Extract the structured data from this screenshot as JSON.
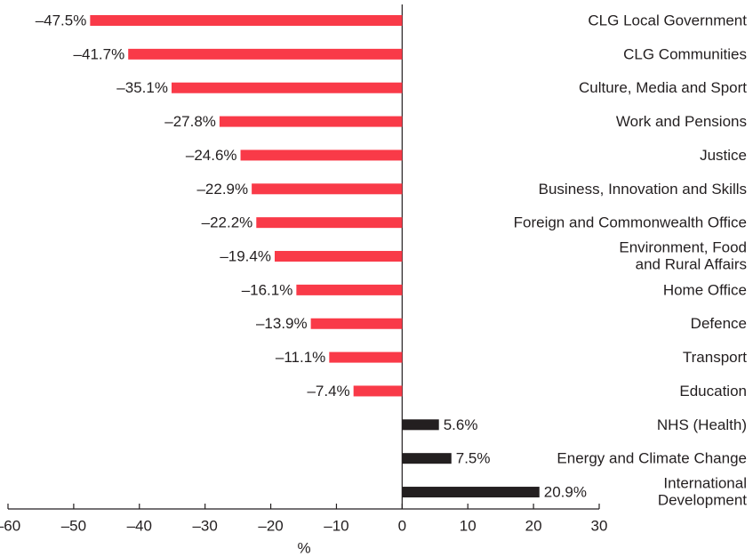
{
  "chart_data": {
    "type": "bar",
    "orientation": "horizontal",
    "categories": [
      "CLG Local Government",
      "CLG  Communities",
      "Culture, Media and Sport",
      "Work and Pensions",
      "Justice",
      "Business, Innovation and Skills",
      "Foreign and Commonwealth Office",
      "Environment, Food\nand Rural Affairs",
      "Home Office",
      "Defence",
      "Transport",
      "Education",
      "NHS (Health)",
      "Energy and Climate Change",
      "International\nDevelopment"
    ],
    "values": [
      -47.5,
      -41.7,
      -35.1,
      -27.8,
      -24.6,
      -22.9,
      -22.2,
      -19.4,
      -16.1,
      -13.9,
      -11.1,
      -7.4,
      5.6,
      7.5,
      20.9
    ],
    "value_labels": [
      "–47.5%",
      "–41.7%",
      "–35.1%",
      "–27.8%",
      "–24.6%",
      "–22.9%",
      "–22.2%",
      "–19.4%",
      "–16.1%",
      "–13.9%",
      "–11.1%",
      "–7.4%",
      "5.6%",
      "7.5%",
      "20.9%"
    ],
    "colors": {
      "negative": "#f93a48",
      "positive": "#231f20"
    },
    "xlabel": "%",
    "xlim": [
      -60,
      30
    ],
    "xticks": [
      {
        "value": -60,
        "label": "–60"
      },
      {
        "value": -50,
        "label": "–50"
      },
      {
        "value": -40,
        "label": "–40"
      },
      {
        "value": -30,
        "label": "–30"
      },
      {
        "value": -20,
        "label": "–20"
      },
      {
        "value": -10,
        "label": "–10"
      },
      0,
      10,
      20,
      30
    ]
  }
}
